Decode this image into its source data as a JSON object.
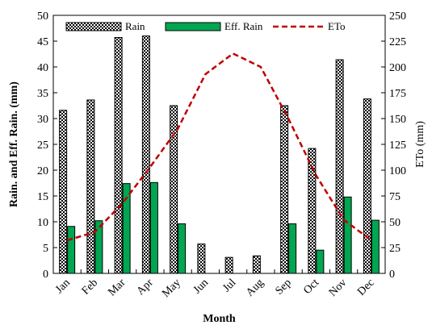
{
  "chart_data": {
    "type": "bar",
    "categories": [
      "Jan",
      "Feb",
      "Mar",
      "Apr",
      "May",
      "Jun",
      "Jul",
      "Aug",
      "Sep",
      "Oct",
      "Nov",
      "Dec"
    ],
    "series": [
      {
        "name": "Rain",
        "type": "bar",
        "axis": "left",
        "color": "#000000",
        "values": [
          31.6,
          33.6,
          45.7,
          46.0,
          32.5,
          5.7,
          3.1,
          3.4,
          32.5,
          24.2,
          41.4,
          33.8
        ]
      },
      {
        "name": "Eff. Rain",
        "type": "bar",
        "axis": "left",
        "color": "#00a651",
        "values": [
          9.1,
          10.2,
          17.4,
          17.6,
          9.6,
          0,
          0,
          0,
          9.6,
          4.5,
          14.8,
          10.3
        ]
      },
      {
        "name": "ETo",
        "type": "line",
        "axis": "right",
        "color": "#c00000",
        "style": "dashed",
        "values": [
          32,
          40,
          68,
          103,
          140,
          193,
          213,
          200,
          150,
          95,
          52,
          32
        ]
      }
    ],
    "xlabel": "Month",
    "ylabel": "Rain. and Eff. Rain. (mm)",
    "y2label": "ETo (mm)",
    "ylim": [
      0,
      50
    ],
    "y2lim": [
      0,
      250
    ],
    "yticks": [
      0,
      5,
      10,
      15,
      20,
      25,
      30,
      35,
      40,
      45,
      50
    ],
    "y2ticks": [
      0,
      25,
      50,
      75,
      100,
      125,
      150,
      175,
      200,
      225,
      250
    ],
    "legend_position": "top",
    "grid": false
  }
}
